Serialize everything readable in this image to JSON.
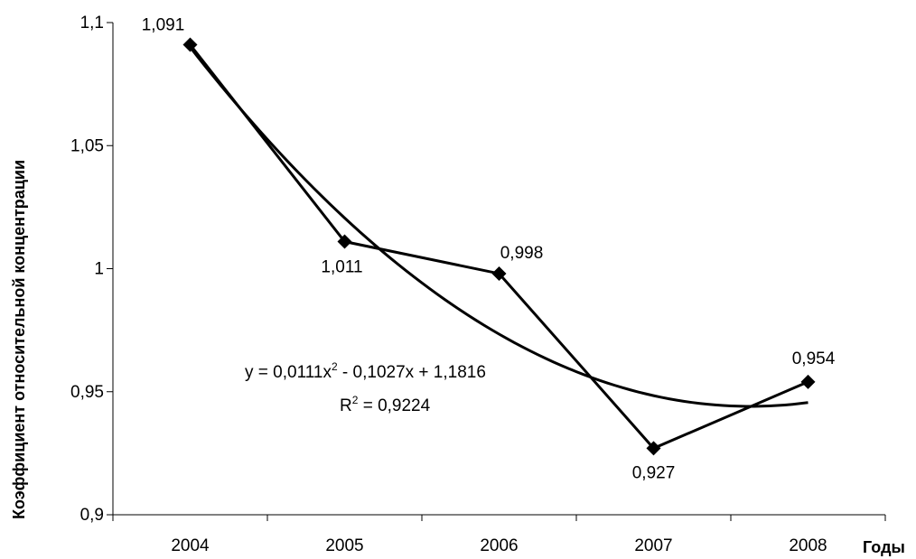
{
  "chart_data": {
    "type": "line",
    "title": "",
    "xlabel": "Годы",
    "ylabel": "Коэффициент относительной концентрации",
    "categories": [
      "2004",
      "2005",
      "2006",
      "2007",
      "2008"
    ],
    "series": [
      {
        "values": [
          1.091,
          1.011,
          0.998,
          0.927,
          0.954
        ]
      }
    ],
    "data_labels": [
      "1,091",
      "1,011",
      "0,998",
      "0,927",
      "0,954"
    ],
    "y_ticks": [
      0.9,
      0.95,
      1.0,
      1.05,
      1.1
    ],
    "y_tick_labels": [
      "0,9",
      "0,95",
      "1",
      "1,05",
      "1,1"
    ],
    "ylim": [
      0.9,
      1.1
    ],
    "grid": false,
    "legend": "none",
    "trendline": {
      "type": "polynomial",
      "order": 2,
      "coefficients": [
        0.0111,
        -0.1027,
        1.1816
      ],
      "equation_text": "y = 0,0111x",
      "equation_sup": "2",
      "equation_rest": " - 0,1027x + 1,1816",
      "r2_text": "R",
      "r2_sup": "2",
      "r2_rest": " = 0,9224"
    },
    "colors": {
      "series": "#000000",
      "trend": "#000000",
      "axis": "#000000"
    }
  }
}
